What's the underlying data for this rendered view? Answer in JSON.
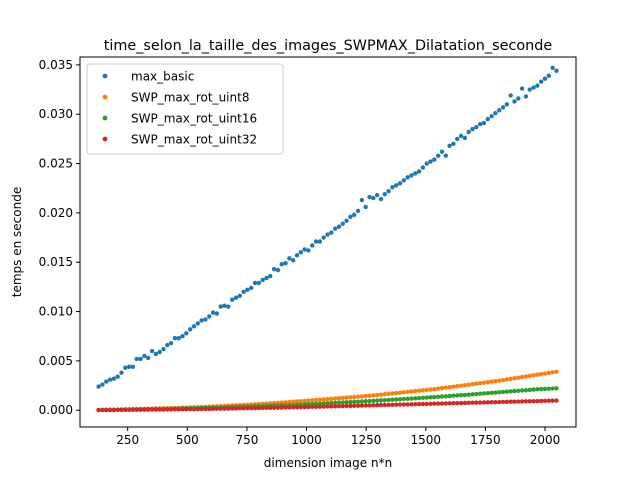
{
  "chart_data": {
    "type": "scatter",
    "title": "time_selon_la_taille_des_images_SWPMAX_Dilatation_seconde",
    "xlabel": "dimension image n*n",
    "ylabel": "temps en seconde",
    "xlim": [
      50,
      2130
    ],
    "ylim": [
      -0.0017,
      0.0358
    ],
    "xticks": [
      250,
      500,
      750,
      1000,
      1250,
      1500,
      1750,
      2000
    ],
    "yticks": [
      0.0,
      0.005,
      0.01,
      0.015,
      0.02,
      0.025,
      0.03,
      0.035
    ],
    "ytick_labels": [
      "0.000",
      "0.005",
      "0.010",
      "0.015",
      "0.020",
      "0.025",
      "0.030",
      "0.035"
    ],
    "grid": false,
    "legend_position": "upper-left",
    "x": [
      128,
      144,
      160,
      176,
      192,
      208,
      224,
      240,
      256,
      272,
      288,
      304,
      320,
      336,
      352,
      368,
      384,
      400,
      416,
      432,
      448,
      464,
      480,
      496,
      512,
      528,
      544,
      560,
      576,
      592,
      608,
      624,
      640,
      656,
      672,
      688,
      704,
      720,
      736,
      752,
      768,
      784,
      800,
      816,
      832,
      848,
      864,
      880,
      896,
      912,
      928,
      944,
      960,
      976,
      992,
      1008,
      1024,
      1040,
      1056,
      1072,
      1088,
      1104,
      1120,
      1136,
      1152,
      1168,
      1184,
      1200,
      1216,
      1232,
      1248,
      1264,
      1280,
      1296,
      1312,
      1328,
      1344,
      1360,
      1376,
      1392,
      1408,
      1424,
      1440,
      1456,
      1472,
      1488,
      1504,
      1520,
      1536,
      1552,
      1568,
      1584,
      1600,
      1616,
      1632,
      1648,
      1664,
      1680,
      1696,
      1712,
      1728,
      1744,
      1760,
      1776,
      1792,
      1808,
      1824,
      1840,
      1856,
      1872,
      1888,
      1904,
      1920,
      1936,
      1952,
      1968,
      1984,
      2000,
      2016,
      2032,
      2048
    ],
    "series": [
      {
        "name": "max_basic",
        "color": "#1f77b4",
        "values": [
          0.0024,
          0.0026,
          0.0029,
          0.0031,
          0.0032,
          0.0034,
          0.0038,
          0.0043,
          0.0044,
          0.0044,
          0.0052,
          0.0052,
          0.0055,
          0.0053,
          0.006,
          0.0057,
          0.0059,
          0.0062,
          0.0066,
          0.0068,
          0.0073,
          0.0073,
          0.0075,
          0.0078,
          0.0082,
          0.0085,
          0.0088,
          0.0091,
          0.0092,
          0.0095,
          0.0099,
          0.0098,
          0.0105,
          0.0106,
          0.0105,
          0.0112,
          0.0114,
          0.0116,
          0.012,
          0.0122,
          0.0124,
          0.0129,
          0.0129,
          0.0132,
          0.0134,
          0.0136,
          0.0143,
          0.0142,
          0.0148,
          0.0149,
          0.0154,
          0.0152,
          0.0157,
          0.016,
          0.0163,
          0.0162,
          0.0167,
          0.0171,
          0.0171,
          0.0175,
          0.0178,
          0.018,
          0.0184,
          0.0186,
          0.0189,
          0.0192,
          0.0196,
          0.0198,
          0.0202,
          0.0213,
          0.0206,
          0.0216,
          0.0215,
          0.0218,
          0.0214,
          0.0219,
          0.0222,
          0.0226,
          0.0228,
          0.023,
          0.0233,
          0.0236,
          0.0238,
          0.024,
          0.0242,
          0.0246,
          0.025,
          0.0252,
          0.0254,
          0.0258,
          0.0262,
          0.0258,
          0.0268,
          0.027,
          0.0275,
          0.0278,
          0.0276,
          0.0282,
          0.0285,
          0.0287,
          0.029,
          0.0291,
          0.0295,
          0.0298,
          0.0301,
          0.0304,
          0.0307,
          0.031,
          0.0319,
          0.0313,
          0.0316,
          0.0326,
          0.0318,
          0.0325,
          0.0327,
          0.0329,
          0.0333,
          0.0336,
          0.0339,
          0.0347,
          0.0344
        ]
      },
      {
        "name": "SWP_max_rot_uint8",
        "color": "#ff7f0e",
        "values": [
          3e-05,
          4e-05,
          5e-05,
          6e-05,
          7e-05,
          8e-05,
          9e-05,
          0.0001,
          0.00011,
          0.00012,
          0.00013,
          0.00014,
          0.00015,
          0.00016,
          0.00017,
          0.00018,
          0.00019,
          0.0002,
          0.00021,
          0.00022,
          0.00023,
          0.00024,
          0.00026,
          0.00027,
          0.00028,
          0.0003,
          0.00031,
          0.00033,
          0.00034,
          0.00036,
          0.00038,
          0.0004,
          0.00042,
          0.00044,
          0.00046,
          0.00048,
          0.0005,
          0.00052,
          0.00054,
          0.00056,
          0.00058,
          0.0006,
          0.00063,
          0.00065,
          0.00068,
          0.0007,
          0.00072,
          0.00075,
          0.00078,
          0.0008,
          0.00083,
          0.00086,
          0.00089,
          0.00092,
          0.00095,
          0.00098,
          0.00101,
          0.00104,
          0.00107,
          0.0011,
          0.00113,
          0.00116,
          0.00119,
          0.00122,
          0.00125,
          0.00128,
          0.00131,
          0.00134,
          0.00137,
          0.0014,
          0.00144,
          0.00147,
          0.0015,
          0.00154,
          0.00158,
          0.00162,
          0.00166,
          0.0017,
          0.00174,
          0.00178,
          0.00182,
          0.00186,
          0.0019,
          0.00194,
          0.00198,
          0.00202,
          0.00206,
          0.0021,
          0.00214,
          0.00219,
          0.00224,
          0.00229,
          0.00234,
          0.00239,
          0.00244,
          0.00249,
          0.00254,
          0.00259,
          0.00264,
          0.00269,
          0.00274,
          0.00279,
          0.00284,
          0.00289,
          0.00294,
          0.003,
          0.00306,
          0.00312,
          0.00318,
          0.00324,
          0.0033,
          0.00336,
          0.00342,
          0.00348,
          0.00354,
          0.0036,
          0.00366,
          0.00372,
          0.00378,
          0.00384,
          0.0039
        ]
      },
      {
        "name": "SWP_max_rot_uint16",
        "color": "#2ca02c",
        "values": [
          2e-05,
          3e-05,
          3e-05,
          4e-05,
          4e-05,
          5e-05,
          5e-05,
          6e-05,
          6e-05,
          7e-05,
          8e-05,
          8e-05,
          9e-05,
          0.0001,
          0.0001,
          0.00011,
          0.00012,
          0.00013,
          0.00014,
          0.00015,
          0.00016,
          0.00017,
          0.00018,
          0.00019,
          0.0002,
          0.00021,
          0.00022,
          0.00023,
          0.00024,
          0.00025,
          0.00026,
          0.00027,
          0.00028,
          0.0003,
          0.00031,
          0.00032,
          0.00033,
          0.00034,
          0.00036,
          0.00037,
          0.00038,
          0.0004,
          0.00041,
          0.00042,
          0.00044,
          0.00045,
          0.00047,
          0.00048,
          0.0005,
          0.00051,
          0.00053,
          0.00054,
          0.00056,
          0.00058,
          0.0006,
          0.00061,
          0.00063,
          0.00065,
          0.00067,
          0.00069,
          0.00071,
          0.00073,
          0.00075,
          0.00077,
          0.00079,
          0.00081,
          0.00083,
          0.00085,
          0.00087,
          0.00089,
          0.00091,
          0.00093,
          0.00095,
          0.00098,
          0.001,
          0.00102,
          0.00104,
          0.00107,
          0.00109,
          0.00111,
          0.00114,
          0.00116,
          0.00118,
          0.00121,
          0.00123,
          0.00126,
          0.00128,
          0.00131,
          0.00133,
          0.00136,
          0.00139,
          0.00141,
          0.00144,
          0.00147,
          0.0015,
          0.00152,
          0.00155,
          0.00158,
          0.00161,
          0.00164,
          0.00167,
          0.0017,
          0.00173,
          0.00176,
          0.00179,
          0.00182,
          0.00185,
          0.00188,
          0.00191,
          0.00194,
          0.00197,
          0.002,
          0.00203,
          0.00206,
          0.0021,
          0.00212,
          0.00214,
          0.00216,
          0.00218,
          0.0022,
          0.00222
        ]
      },
      {
        "name": "SWP_max_rot_uint32",
        "color": "#d62728",
        "values": [
          1e-05,
          1e-05,
          2e-05,
          2e-05,
          2e-05,
          3e-05,
          3e-05,
          3e-05,
          4e-05,
          4e-05,
          4e-05,
          5e-05,
          5e-05,
          5e-05,
          6e-05,
          6e-05,
          7e-05,
          7e-05,
          8e-05,
          8e-05,
          9e-05,
          9e-05,
          0.0001,
          0.0001,
          0.00011,
          0.00011,
          0.00012,
          0.00012,
          0.00013,
          0.00013,
          0.00014,
          0.00015,
          0.00015,
          0.00016,
          0.00017,
          0.00017,
          0.00018,
          0.00019,
          0.00019,
          0.0002,
          0.00021,
          0.00021,
          0.00022,
          0.00023,
          0.00024,
          0.00024,
          0.00025,
          0.00026,
          0.00027,
          0.00028,
          0.00028,
          0.00029,
          0.0003,
          0.00031,
          0.00032,
          0.00033,
          0.00034,
          0.00035,
          0.00036,
          0.00037,
          0.00038,
          0.00039,
          0.0004,
          0.00041,
          0.00042,
          0.00043,
          0.00044,
          0.00045,
          0.00046,
          0.00047,
          0.00048,
          0.00049,
          0.0005,
          0.00051,
          0.00052,
          0.00053,
          0.00054,
          0.00055,
          0.00056,
          0.00057,
          0.00058,
          0.00059,
          0.0006,
          0.00061,
          0.00062,
          0.00063,
          0.00064,
          0.00065,
          0.00066,
          0.00067,
          0.00068,
          0.00069,
          0.0007,
          0.00071,
          0.00072,
          0.00073,
          0.00074,
          0.00075,
          0.00076,
          0.00077,
          0.00078,
          0.00079,
          0.0008,
          0.00081,
          0.00082,
          0.00083,
          0.00084,
          0.00085,
          0.00086,
          0.00087,
          0.00088,
          0.00089,
          0.0009,
          0.00091,
          0.00092,
          0.00093,
          0.00094,
          0.00095,
          0.00096,
          0.00097,
          0.00098
        ]
      }
    ]
  }
}
